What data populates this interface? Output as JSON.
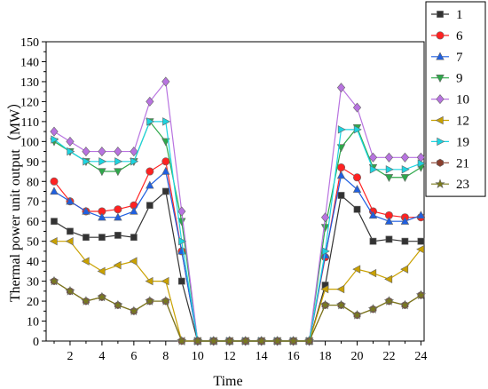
{
  "chart_data": {
    "type": "line",
    "title": "",
    "xlabel": "Time",
    "ylabel": "Thermal power unit output（MW）",
    "xlim": [
      0.5,
      24.2
    ],
    "ylim": [
      0,
      150
    ],
    "xticks": [
      2,
      4,
      6,
      8,
      10,
      12,
      14,
      16,
      18,
      20,
      22,
      24
    ],
    "yticks": [
      0,
      10,
      20,
      30,
      40,
      50,
      60,
      70,
      80,
      90,
      100,
      110,
      120,
      130,
      140,
      150
    ],
    "grid": false,
    "legend_position": "top-right",
    "x": [
      1,
      2,
      3,
      4,
      5,
      6,
      7,
      8,
      9,
      10,
      11,
      12,
      13,
      14,
      15,
      16,
      17,
      18,
      19,
      20,
      21,
      22,
      23,
      24
    ],
    "series": [
      {
        "name": "1",
        "color": "#333333",
        "marker": "square",
        "values": [
          60,
          55,
          52,
          52,
          53,
          52,
          68,
          75,
          30,
          0,
          0,
          0,
          0,
          0,
          0,
          0,
          0,
          28,
          73,
          66,
          50,
          51,
          50,
          50
        ]
      },
      {
        "name": "6",
        "color": "#ff2222",
        "marker": "circle",
        "values": [
          80,
          70,
          65,
          65,
          66,
          68,
          85,
          90,
          45,
          0,
          0,
          0,
          0,
          0,
          0,
          0,
          0,
          42,
          87,
          82,
          65,
          63,
          62,
          62
        ]
      },
      {
        "name": "7",
        "color": "#1f5fe0",
        "marker": "triangle-up",
        "values": [
          75,
          70,
          65,
          62,
          62,
          65,
          78,
          85,
          45,
          0,
          0,
          0,
          0,
          0,
          0,
          0,
          0,
          43,
          83,
          76,
          63,
          60,
          60,
          63
        ]
      },
      {
        "name": "9",
        "color": "#2ea84a",
        "marker": "triangle-down",
        "values": [
          100,
          95,
          90,
          85,
          85,
          90,
          110,
          100,
          60,
          0,
          0,
          0,
          0,
          0,
          0,
          0,
          0,
          57,
          97,
          107,
          87,
          82,
          82,
          87
        ]
      },
      {
        "name": "10",
        "color": "#b873e0",
        "marker": "diamond",
        "values": [
          105,
          100,
          95,
          95,
          95,
          95,
          120,
          130,
          65,
          0,
          0,
          0,
          0,
          0,
          0,
          0,
          0,
          62,
          127,
          117,
          92,
          92,
          92,
          92
        ]
      },
      {
        "name": "12",
        "color": "#c9a100",
        "marker": "triangle-left",
        "values": [
          50,
          50,
          40,
          35,
          38,
          40,
          30,
          30,
          0,
          0,
          0,
          0,
          0,
          0,
          0,
          0,
          0,
          26,
          26,
          36,
          34,
          31,
          36,
          46
        ]
      },
      {
        "name": "19",
        "color": "#1dd4e0",
        "marker": "triangle-right",
        "values": [
          101,
          95,
          90,
          90,
          90,
          90,
          110,
          110,
          50,
          0,
          0,
          0,
          0,
          0,
          0,
          0,
          0,
          45,
          106,
          106,
          86,
          86,
          86,
          89
        ]
      },
      {
        "name": "21",
        "color": "#8a3f2d",
        "marker": "hexagon",
        "values": [
          30,
          25,
          20,
          22,
          18,
          15,
          20,
          20,
          0,
          0,
          0,
          0,
          0,
          0,
          0,
          0,
          0,
          18,
          18,
          13,
          16,
          20,
          18,
          23
        ]
      },
      {
        "name": "23",
        "color": "#7a7a1c",
        "marker": "star",
        "values": [
          30,
          25,
          20,
          22,
          18,
          15,
          20,
          20,
          0,
          0,
          0,
          0,
          0,
          0,
          0,
          0,
          0,
          18,
          18,
          13,
          16,
          20,
          18,
          23
        ]
      }
    ]
  }
}
